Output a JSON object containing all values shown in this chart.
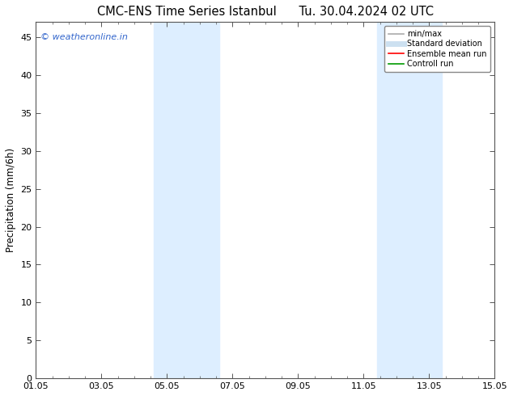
{
  "title_left": "CMC-ENS Time Series Istanbul",
  "title_right": "Tu. 30.04.2024 02 UTC",
  "ylabel": "Precipitation (mm/6h)",
  "watermark": "© weatheronline.in",
  "watermark_color": "#3366cc",
  "background_color": "#ffffff",
  "plot_bg_color": "#ffffff",
  "ylim": [
    0,
    47
  ],
  "yticks": [
    0,
    5,
    10,
    15,
    20,
    25,
    30,
    35,
    40,
    45
  ],
  "xlim_start": 0,
  "xlim_end": 14,
  "xtick_positions": [
    0,
    2,
    4,
    6,
    8,
    10,
    12,
    14
  ],
  "xtick_labels": [
    "01.05",
    "03.05",
    "05.05",
    "07.05",
    "09.05",
    "11.05",
    "13.05",
    "15.05"
  ],
  "shaded_bands": [
    {
      "x_start": 3.6,
      "x_end": 5.6
    },
    {
      "x_start": 10.4,
      "x_end": 12.4
    }
  ],
  "shade_color": "#ddeeff",
  "legend_items": [
    {
      "label": "min/max",
      "color": "#aaaaaa",
      "lw": 1.2,
      "style": "solid"
    },
    {
      "label": "Standard deviation",
      "color": "#cce0f0",
      "lw": 5,
      "style": "solid"
    },
    {
      "label": "Ensemble mean run",
      "color": "#ff0000",
      "lw": 1.2,
      "style": "solid"
    },
    {
      "label": "Controll run",
      "color": "#009900",
      "lw": 1.2,
      "style": "solid"
    }
  ],
  "title_fontsize": 10.5,
  "tick_fontsize": 8,
  "ylabel_fontsize": 8.5,
  "watermark_fontsize": 8
}
